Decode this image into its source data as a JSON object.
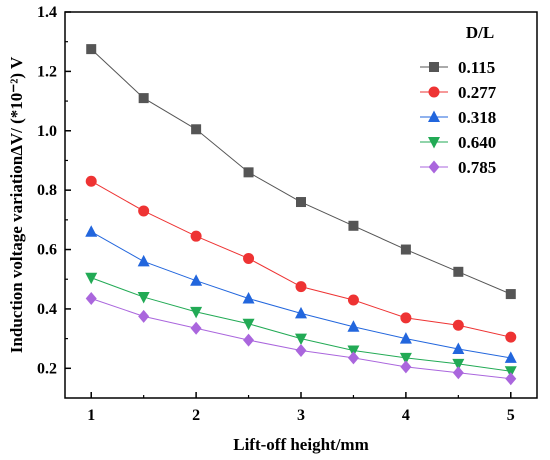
{
  "chart_data": {
    "type": "line",
    "xlabel": "Lift-off height/mm",
    "ylabel": "Induction voltage variationΔV/ (*10⁻²) V",
    "xlim": [
      0.75,
      5.25
    ],
    "ylim": [
      0.1,
      1.4
    ],
    "xticks": [
      "1",
      "2",
      "3",
      "4",
      "5"
    ],
    "yticks": [
      "0.2",
      "0.4",
      "0.6",
      "0.8",
      "1.0",
      "1.2",
      "1.4"
    ],
    "legend_title": "D/L",
    "legend_position": "top-right",
    "grid": false,
    "x": [
      1,
      1.5,
      2,
      2.5,
      3,
      3.5,
      4,
      4.5,
      5
    ],
    "series": [
      {
        "name": "0.115",
        "marker": "square",
        "color": "#555555",
        "line_color": "#555555",
        "values": [
          1.275,
          1.11,
          1.005,
          0.86,
          0.76,
          0.68,
          0.6,
          0.525,
          0.45
        ]
      },
      {
        "name": "0.277",
        "marker": "circle",
        "color": "#ee3333",
        "line_color": "#ee3333",
        "values": [
          0.83,
          0.73,
          0.645,
          0.57,
          0.475,
          0.43,
          0.37,
          0.345,
          0.305
        ]
      },
      {
        "name": "0.318",
        "marker": "triangle-up",
        "color": "#2266dd",
        "line_color": "#2266dd",
        "values": [
          0.66,
          0.56,
          0.495,
          0.435,
          0.385,
          0.34,
          0.3,
          0.265,
          0.235
        ]
      },
      {
        "name": "0.640",
        "marker": "triangle-down",
        "color": "#22aa55",
        "line_color": "#22aa55",
        "values": [
          0.505,
          0.44,
          0.39,
          0.35,
          0.3,
          0.26,
          0.235,
          0.215,
          0.19
        ]
      },
      {
        "name": "0.785",
        "marker": "diamond",
        "color": "#aa66dd",
        "line_color": "#aa66dd",
        "values": [
          0.435,
          0.375,
          0.335,
          0.295,
          0.26,
          0.235,
          0.205,
          0.185,
          0.165
        ]
      }
    ]
  }
}
